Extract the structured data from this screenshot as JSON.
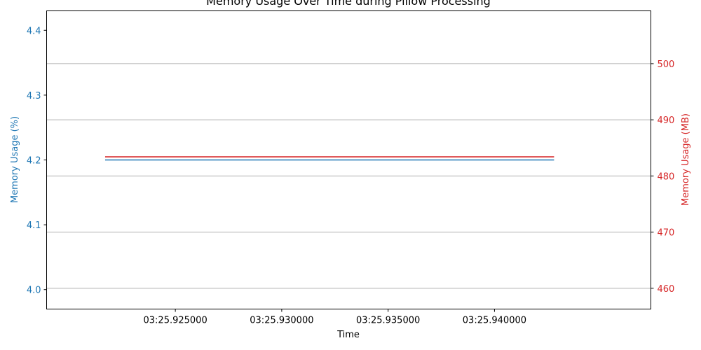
{
  "chart_data": {
    "type": "line",
    "title": "Memory Usage Over Time during Pillow Processing",
    "xlabel": "Time",
    "x_ticks": [
      "03:25.925000",
      "03:25.930000",
      "03:25.935000",
      "03:25.940000"
    ],
    "x_tick_values": [
      25.925,
      25.93,
      25.935,
      25.94
    ],
    "xlim": [
      25.91895,
      25.94735
    ],
    "y_left": {
      "label": "Memory Usage (%)",
      "ticks": [
        "4.0",
        "4.1",
        "4.2",
        "4.3",
        "4.4"
      ],
      "tick_values": [
        4.0,
        4.1,
        4.2,
        4.3,
        4.4
      ],
      "ylim": [
        3.97,
        4.43
      ],
      "color": "#1f77b4"
    },
    "y_right": {
      "label": "Memory Usage (MB)",
      "ticks": [
        "460",
        "470",
        "480",
        "490",
        "500"
      ],
      "tick_values": [
        460,
        470,
        480,
        490,
        500
      ],
      "ylim": [
        456.3,
        509.4
      ],
      "color": "#d62728"
    },
    "grid": true,
    "series": [
      {
        "axis": "left",
        "color": "#1f77b4",
        "x": [
          25.9217,
          25.9428
        ],
        "values": [
          4.2,
          4.2
        ]
      },
      {
        "axis": "right",
        "color": "#d62728",
        "x": [
          25.9217,
          25.9428
        ],
        "values": [
          483.4,
          483.4
        ]
      }
    ]
  }
}
